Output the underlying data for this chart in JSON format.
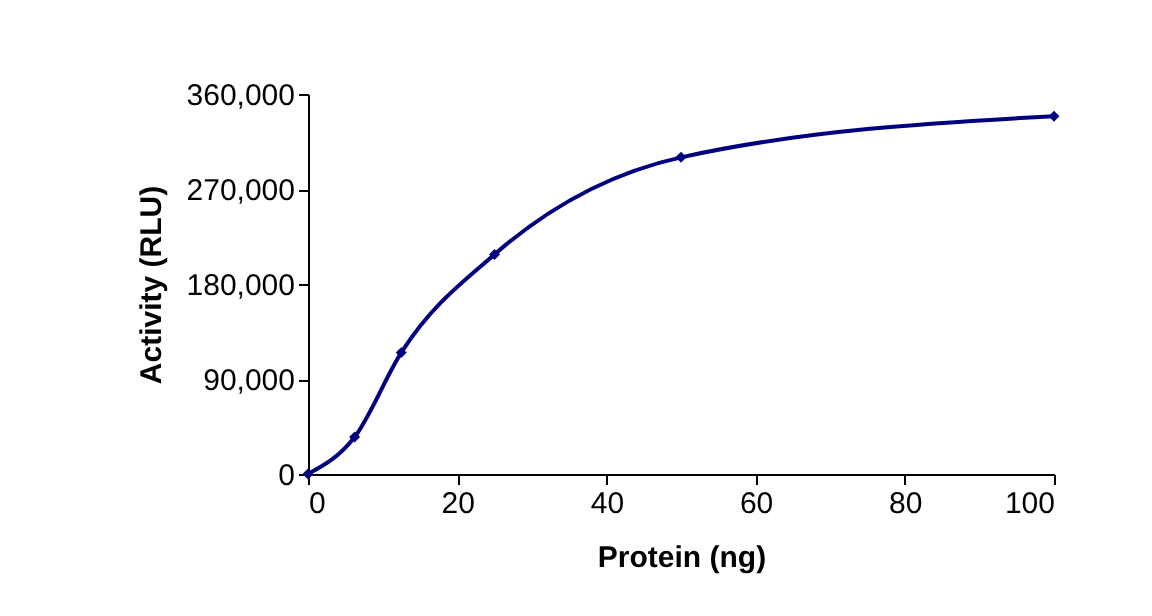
{
  "chart_data": {
    "type": "line",
    "xlabel": "Protein (ng)",
    "ylabel": "Activity (RLU)",
    "x": [
      0,
      6.25,
      12.5,
      25,
      50,
      100
    ],
    "series": [
      {
        "color": "#000080",
        "values": [
          0,
          35000,
          115000,
          208000,
          300000,
          339000
        ]
      }
    ],
    "xlim": [
      0,
      100
    ],
    "xticks": [
      0,
      20,
      40,
      60,
      80,
      100
    ],
    "ylim": [
      0,
      360000
    ],
    "yticks": [
      0,
      {
        "value": 90000,
        "label": "90,000"
      },
      {
        "value": 180000,
        "label": "180,000"
      },
      {
        "value": 270000,
        "label": "270,000"
      },
      {
        "value": 360000,
        "label": "360,000"
      }
    ],
    "grid": false,
    "marker": "diamond",
    "line_style": "solid"
  }
}
